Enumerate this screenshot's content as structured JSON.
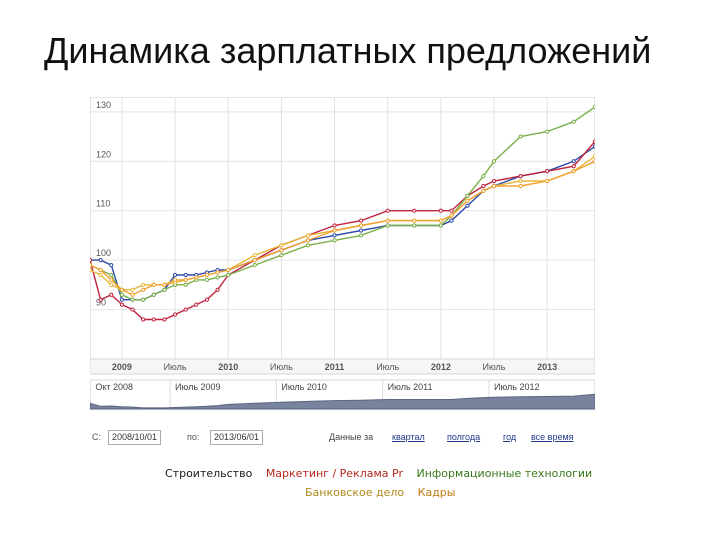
{
  "slide": {
    "title": "Динамика зарплатных предложений"
  },
  "chart_data": {
    "type": "line",
    "title": "",
    "xlabel": "",
    "ylabel": "",
    "ylim": [
      80,
      133
    ],
    "yticks": [
      90,
      100,
      110,
      120,
      130
    ],
    "xlim": [
      2008.7,
      2013.45
    ],
    "xticks": [
      {
        "x": 2009.0,
        "label": "2009"
      },
      {
        "x": 2009.5,
        "label": "Июль"
      },
      {
        "x": 2010.0,
        "label": "2010"
      },
      {
        "x": 2010.5,
        "label": "Июль"
      },
      {
        "x": 2011.0,
        "label": "2011"
      },
      {
        "x": 2011.5,
        "label": "Июль"
      },
      {
        "x": 2012.0,
        "label": "2012"
      },
      {
        "x": 2012.5,
        "label": "Июль"
      },
      {
        "x": 2013.0,
        "label": "2013"
      }
    ],
    "grid": true,
    "series": [
      {
        "name": "Строительство",
        "color": "#2e4aa8",
        "x": [
          2008.7,
          2008.8,
          2008.9,
          2009.0,
          2009.1,
          2009.2,
          2009.3,
          2009.4,
          2009.5,
          2009.6,
          2009.7,
          2009.8,
          2009.9,
          2010.0,
          2010.25,
          2010.5,
          2010.75,
          2011.0,
          2011.25,
          2011.5,
          2011.75,
          2012.0,
          2012.1,
          2012.25,
          2012.4,
          2012.5,
          2012.75,
          2013.0,
          2013.25,
          2013.45
        ],
        "y": [
          100,
          100,
          99,
          92,
          92,
          92,
          93,
          94,
          97,
          97,
          97,
          97.5,
          98,
          98,
          100,
          102,
          104,
          105,
          106,
          107,
          107,
          107,
          108,
          111,
          114,
          115,
          117,
          118,
          120,
          123
        ]
      },
      {
        "name": "Маркетинг / Реклама Pr",
        "color": "#c0223c",
        "x": [
          2008.7,
          2008.8,
          2008.9,
          2009.0,
          2009.1,
          2009.2,
          2009.3,
          2009.4,
          2009.5,
          2009.6,
          2009.7,
          2009.8,
          2009.9,
          2010.0,
          2010.25,
          2010.5,
          2010.75,
          2011.0,
          2011.25,
          2011.5,
          2011.75,
          2012.0,
          2012.1,
          2012.25,
          2012.4,
          2012.5,
          2012.75,
          2013.0,
          2013.25,
          2013.45
        ],
        "y": [
          100,
          92,
          93,
          91,
          90,
          88,
          88,
          88,
          89,
          90,
          91,
          92,
          94,
          97,
          100,
          103,
          105,
          107,
          108,
          110,
          110,
          110,
          110,
          113,
          115,
          116,
          117,
          118,
          119,
          124
        ]
      },
      {
        "name": "Информационные технологии",
        "color": "#7ab04a",
        "x": [
          2008.7,
          2008.8,
          2008.9,
          2009.0,
          2009.1,
          2009.2,
          2009.3,
          2009.4,
          2009.5,
          2009.6,
          2009.7,
          2009.8,
          2009.9,
          2010.0,
          2010.25,
          2010.5,
          2010.75,
          2011.0,
          2011.25,
          2011.5,
          2011.75,
          2012.0,
          2012.1,
          2012.25,
          2012.4,
          2012.5,
          2012.75,
          2013.0,
          2013.25,
          2013.45
        ],
        "y": [
          99,
          98,
          97,
          93,
          92,
          92,
          93,
          94,
          95,
          95,
          96,
          96,
          96.5,
          97,
          99,
          101,
          103,
          104,
          105,
          107,
          107,
          107,
          109,
          113,
          117,
          120,
          125,
          126,
          128,
          131
        ]
      },
      {
        "name": "Банковское дело",
        "color": "#e8b83a",
        "x": [
          2008.7,
          2008.8,
          2008.9,
          2009.0,
          2009.1,
          2009.2,
          2009.3,
          2009.4,
          2009.5,
          2009.6,
          2009.7,
          2009.8,
          2009.9,
          2010.0,
          2010.25,
          2010.5,
          2010.75,
          2011.0,
          2011.25,
          2011.5,
          2011.75,
          2012.0,
          2012.1,
          2012.25,
          2012.4,
          2012.5,
          2012.75,
          2013.0,
          2013.25,
          2013.45
        ],
        "y": [
          98,
          97,
          95,
          94,
          94,
          95,
          95,
          95,
          95.5,
          96,
          96.5,
          97,
          97.5,
          98,
          101,
          103,
          105,
          106,
          107,
          108,
          108,
          108,
          109,
          112,
          114,
          115,
          116,
          116,
          118,
          121
        ]
      },
      {
        "name": "Кадры",
        "color": "#f0a030",
        "x": [
          2008.7,
          2008.8,
          2008.9,
          2009.0,
          2009.1,
          2009.2,
          2009.3,
          2009.4,
          2009.5,
          2009.6,
          2009.7,
          2009.8,
          2009.9,
          2010.0,
          2010.25,
          2010.5,
          2010.75,
          2011.0,
          2011.25,
          2011.5,
          2011.75,
          2012.0,
          2012.1,
          2012.25,
          2012.4,
          2012.5,
          2012.75,
          2013.0,
          2013.25,
          2013.45
        ],
        "y": [
          99,
          98,
          96,
          94,
          93,
          94,
          95,
          95,
          96,
          96,
          96.5,
          97,
          97.5,
          98,
          100,
          102,
          104,
          106,
          107,
          108,
          108,
          108,
          109,
          112,
          114,
          115,
          115,
          116,
          118,
          120
        ]
      }
    ],
    "navigator": {
      "labels": [
        "Окт 2008",
        "Июль 2009",
        "Июль 2010",
        "Июль 2011",
        "Июль 2012"
      ],
      "label_x": [
        2008.75,
        2009.5,
        2010.5,
        2011.5,
        2012.5
      ]
    }
  },
  "controls": {
    "from_label": "С:",
    "from_value": "2008/10/01",
    "to_label": "по:",
    "to_value": "2013/06/01",
    "range_prefix": "Данные за",
    "range_links": [
      "квартал",
      "полгода",
      "год",
      "все время"
    ]
  },
  "legend": {
    "row1": [
      {
        "label": "Строительство",
        "color": "#1a1a1a"
      },
      {
        "label": "Маркетинг / Реклама Pr",
        "color": "#b5281c"
      },
      {
        "label": "Информационные технологии",
        "color": "#3a7a1a"
      }
    ],
    "row2": [
      {
        "label": "Банковское дело",
        "color": "#b08a1a"
      },
      {
        "label": "Кадры",
        "color": "#c27a10"
      }
    ]
  }
}
